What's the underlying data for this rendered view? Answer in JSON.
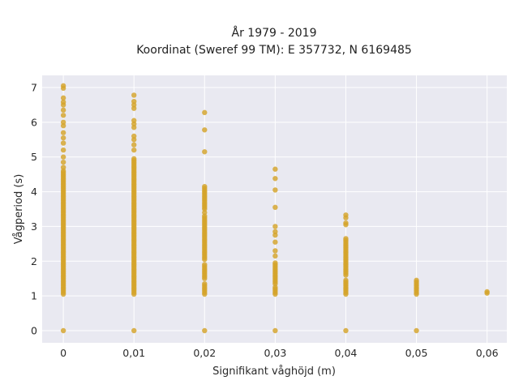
{
  "chart_data": {
    "type": "scatter",
    "title_line1": "År 1979 - 2019",
    "title_line2": "Koordinat (Sweref 99 TM): E 357732, N 6169485",
    "xlabel": "Signifikant våghöjd (m)",
    "ylabel": "Vågperiod (s)",
    "xlim": [
      -0.003,
      0.0628
    ],
    "ylim": [
      -0.35,
      7.35
    ],
    "x_ticks": [
      0,
      0.01,
      0.02,
      0.03,
      0.04,
      0.05,
      0.06
    ],
    "x_tick_labels": [
      "0",
      "0,01",
      "0,02",
      "0,03",
      "0,04",
      "0,05",
      "0,06"
    ],
    "y_ticks": [
      0,
      1,
      2,
      3,
      4,
      5,
      6,
      7
    ],
    "y_tick_labels": [
      "0",
      "1",
      "2",
      "3",
      "4",
      "5",
      "6",
      "7"
    ],
    "grid": true,
    "colors": {
      "marker": "#d4a32a",
      "plot_bg": "#e9e9f1",
      "grid": "#ffffff"
    },
    "groups": [
      {
        "x": 0,
        "dense_ranges": [
          [
            1.05,
            4.6
          ]
        ],
        "points": [
          0,
          4.7,
          4.85,
          5.0,
          5.2,
          5.4,
          5.55,
          5.7,
          5.9,
          6.0,
          6.2,
          6.35,
          6.5,
          6.58,
          6.7,
          6.98,
          7.05
        ]
      },
      {
        "x": 0.01,
        "dense_ranges": [
          [
            1.05,
            4.95
          ]
        ],
        "points": [
          0,
          5.2,
          5.35,
          5.5,
          5.6,
          5.85,
          5.95,
          6.05,
          6.4,
          6.5,
          6.6,
          6.78
        ]
      },
      {
        "x": 0.02,
        "dense_ranges": [
          [
            1.05,
            1.35
          ],
          [
            1.5,
            1.9
          ],
          [
            2.05,
            3.3
          ],
          [
            3.5,
            4.15
          ]
        ],
        "points": [
          0,
          3.4,
          5.15,
          5.78,
          6.28
        ]
      },
      {
        "x": 0.03,
        "dense_ranges": [
          [
            1.05,
            1.25
          ],
          [
            1.35,
            1.95
          ]
        ],
        "points": [
          0,
          2.15,
          2.3,
          2.55,
          2.75,
          2.85,
          3.0,
          3.55,
          4.05,
          4.38,
          4.65
        ]
      },
      {
        "x": 0.04,
        "dense_ranges": [
          [
            1.05,
            1.45
          ],
          [
            1.6,
            2.65
          ]
        ],
        "points": [
          0,
          3.05,
          3.1,
          3.25,
          3.33
        ]
      },
      {
        "x": 0.05,
        "dense_ranges": [
          [
            1.05,
            1.45
          ]
        ],
        "points": [
          0
        ]
      },
      {
        "x": 0.06,
        "dense_ranges": [],
        "points": [
          1.08,
          1.12
        ]
      }
    ]
  }
}
